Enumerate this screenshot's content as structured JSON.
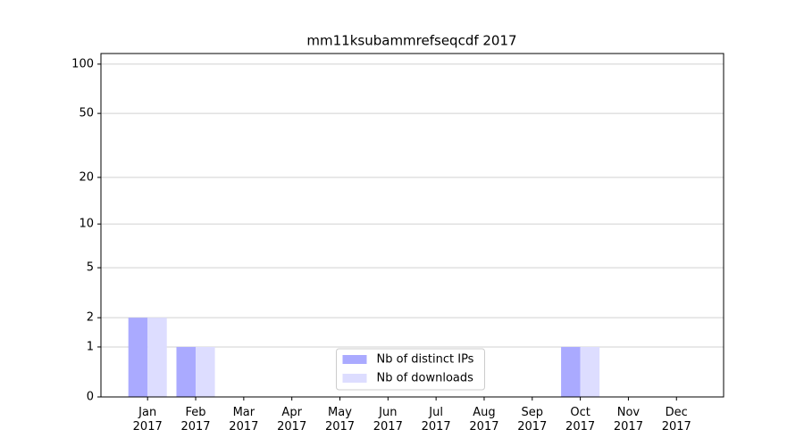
{
  "chart_data": {
    "type": "bar",
    "title": "mm11ksubammrefseqcdf 2017",
    "categories": [
      "Jan 2017",
      "Feb 2017",
      "Mar 2017",
      "Apr 2017",
      "May 2017",
      "Jun 2017",
      "Jul 2017",
      "Aug 2017",
      "Sep 2017",
      "Oct 2017",
      "Nov 2017",
      "Dec 2017"
    ],
    "series": [
      {
        "name": "Nb of distinct IPs",
        "color": "#aaaaff",
        "values": [
          2,
          1,
          0,
          0,
          0,
          0,
          0,
          0,
          0,
          1,
          0,
          0
        ]
      },
      {
        "name": "Nb of downloads",
        "color": "#ddddff",
        "values": [
          2,
          1,
          0,
          0,
          0,
          0,
          0,
          0,
          0,
          1,
          0,
          0
        ]
      }
    ],
    "yscale": "log1p",
    "ylim": [
      0,
      116
    ],
    "yticks": [
      0,
      1,
      2,
      5,
      10,
      20,
      50,
      100
    ],
    "grid": true,
    "legend": "lower center"
  }
}
